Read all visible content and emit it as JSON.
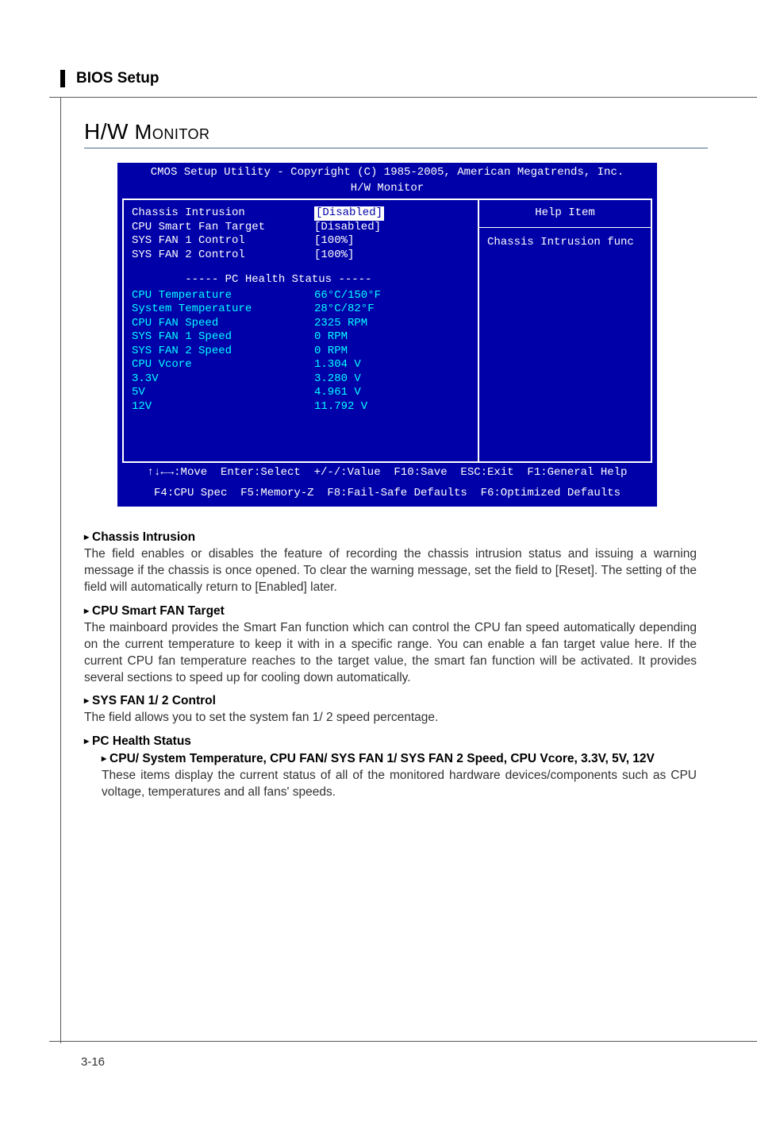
{
  "colors": {
    "bios_bg": "#0000a8",
    "bios_text": "#ffffff",
    "bios_cyan": "#00ffff",
    "rule": "#595959",
    "section_rule": "#4e6a88",
    "body_text": "#333333"
  },
  "fonts": {
    "body_family": "Arial, Helvetica, sans-serif",
    "bios_family": "Courier New, monospace",
    "body_size_pt": 12,
    "bios_size_pt": 10
  },
  "header": {
    "title": "BIOS Setup"
  },
  "section": {
    "title_main": "H/W",
    "title_rest": " Monitor"
  },
  "bios": {
    "top_line": "CMOS Setup Utility - Copyright (C) 1985-2005, American Megatrends, Inc.",
    "subtitle": "H/W Monitor",
    "settings": [
      {
        "label": "Chassis Intrusion",
        "value": "[Disabled]",
        "selected": true,
        "cyan": false
      },
      {
        "label": "CPU Smart Fan Target",
        "value": "[Disabled]",
        "selected": false,
        "cyan": false
      },
      {
        "label": "SYS FAN 1 Control",
        "value": "[100%]",
        "selected": false,
        "cyan": false
      },
      {
        "label": "SYS FAN 2 Control",
        "value": "[100%]",
        "selected": false,
        "cyan": false
      }
    ],
    "health_header": "----- PC Health Status -----",
    "health": [
      {
        "label": "CPU Temperature",
        "value": "66°C/150°F"
      },
      {
        "label": "System Temperature",
        "value": "28°C/82°F"
      },
      {
        "label": "CPU FAN Speed",
        "value": "2325 RPM"
      },
      {
        "label": "SYS FAN 1 Speed",
        "value": "0 RPM"
      },
      {
        "label": "SYS FAN 2 Speed",
        "value": "0 RPM"
      },
      {
        "label": "CPU Vcore",
        "value": "1.304 V"
      },
      {
        "label": "3.3V",
        "value": "3.280 V"
      },
      {
        "label": "5V",
        "value": "4.961 V"
      },
      {
        "label": "12V",
        "value": "11.792 V"
      }
    ],
    "help": {
      "title": "Help Item",
      "text": "Chassis Intrusion func"
    },
    "footer_line1": "↑↓←→:Move  Enter:Select  +/-/:Value  F10:Save  ESC:Exit  F1:General Help",
    "footer_line2": "F4:CPU Spec  F5:Memory-Z  F8:Fail-Safe Defaults  F6:Optimized Defaults"
  },
  "descriptions": [
    {
      "title": "Chassis Intrusion",
      "body": "The field enables or disables the feature of recording the chassis intrusion status and issuing a warning message if the chassis is once opened. To clear the warning message, set the field to [Reset]. The setting of the field will automatically return to [Enabled] later."
    },
    {
      "title": "CPU Smart FAN Target",
      "body": "The mainboard provides the Smart Fan function which can control the CPU fan speed automatically depending on the current temperature to keep it with in a specific range. You can enable a fan target value here. If the current CPU fan temperature reaches to the target value, the smart fan function will be activated. It provides several sections to speed up for cooling down automatically."
    },
    {
      "title": "SYS FAN 1/ 2 Control",
      "body": "The field allows you to set the system fan 1/ 2 speed percentage."
    },
    {
      "title": "PC Health Status",
      "body": null,
      "sub": {
        "title": "CPU/ System Temperature, CPU FAN/ SYS FAN 1/ SYS FAN 2 Speed, CPU Vcore, 3.3V, 5V, 12V",
        "body": "These items display the current status of all of the monitored hardware devices/components such as CPU voltage, temperatures and all fans' speeds."
      }
    }
  ],
  "page_number": "3-16"
}
